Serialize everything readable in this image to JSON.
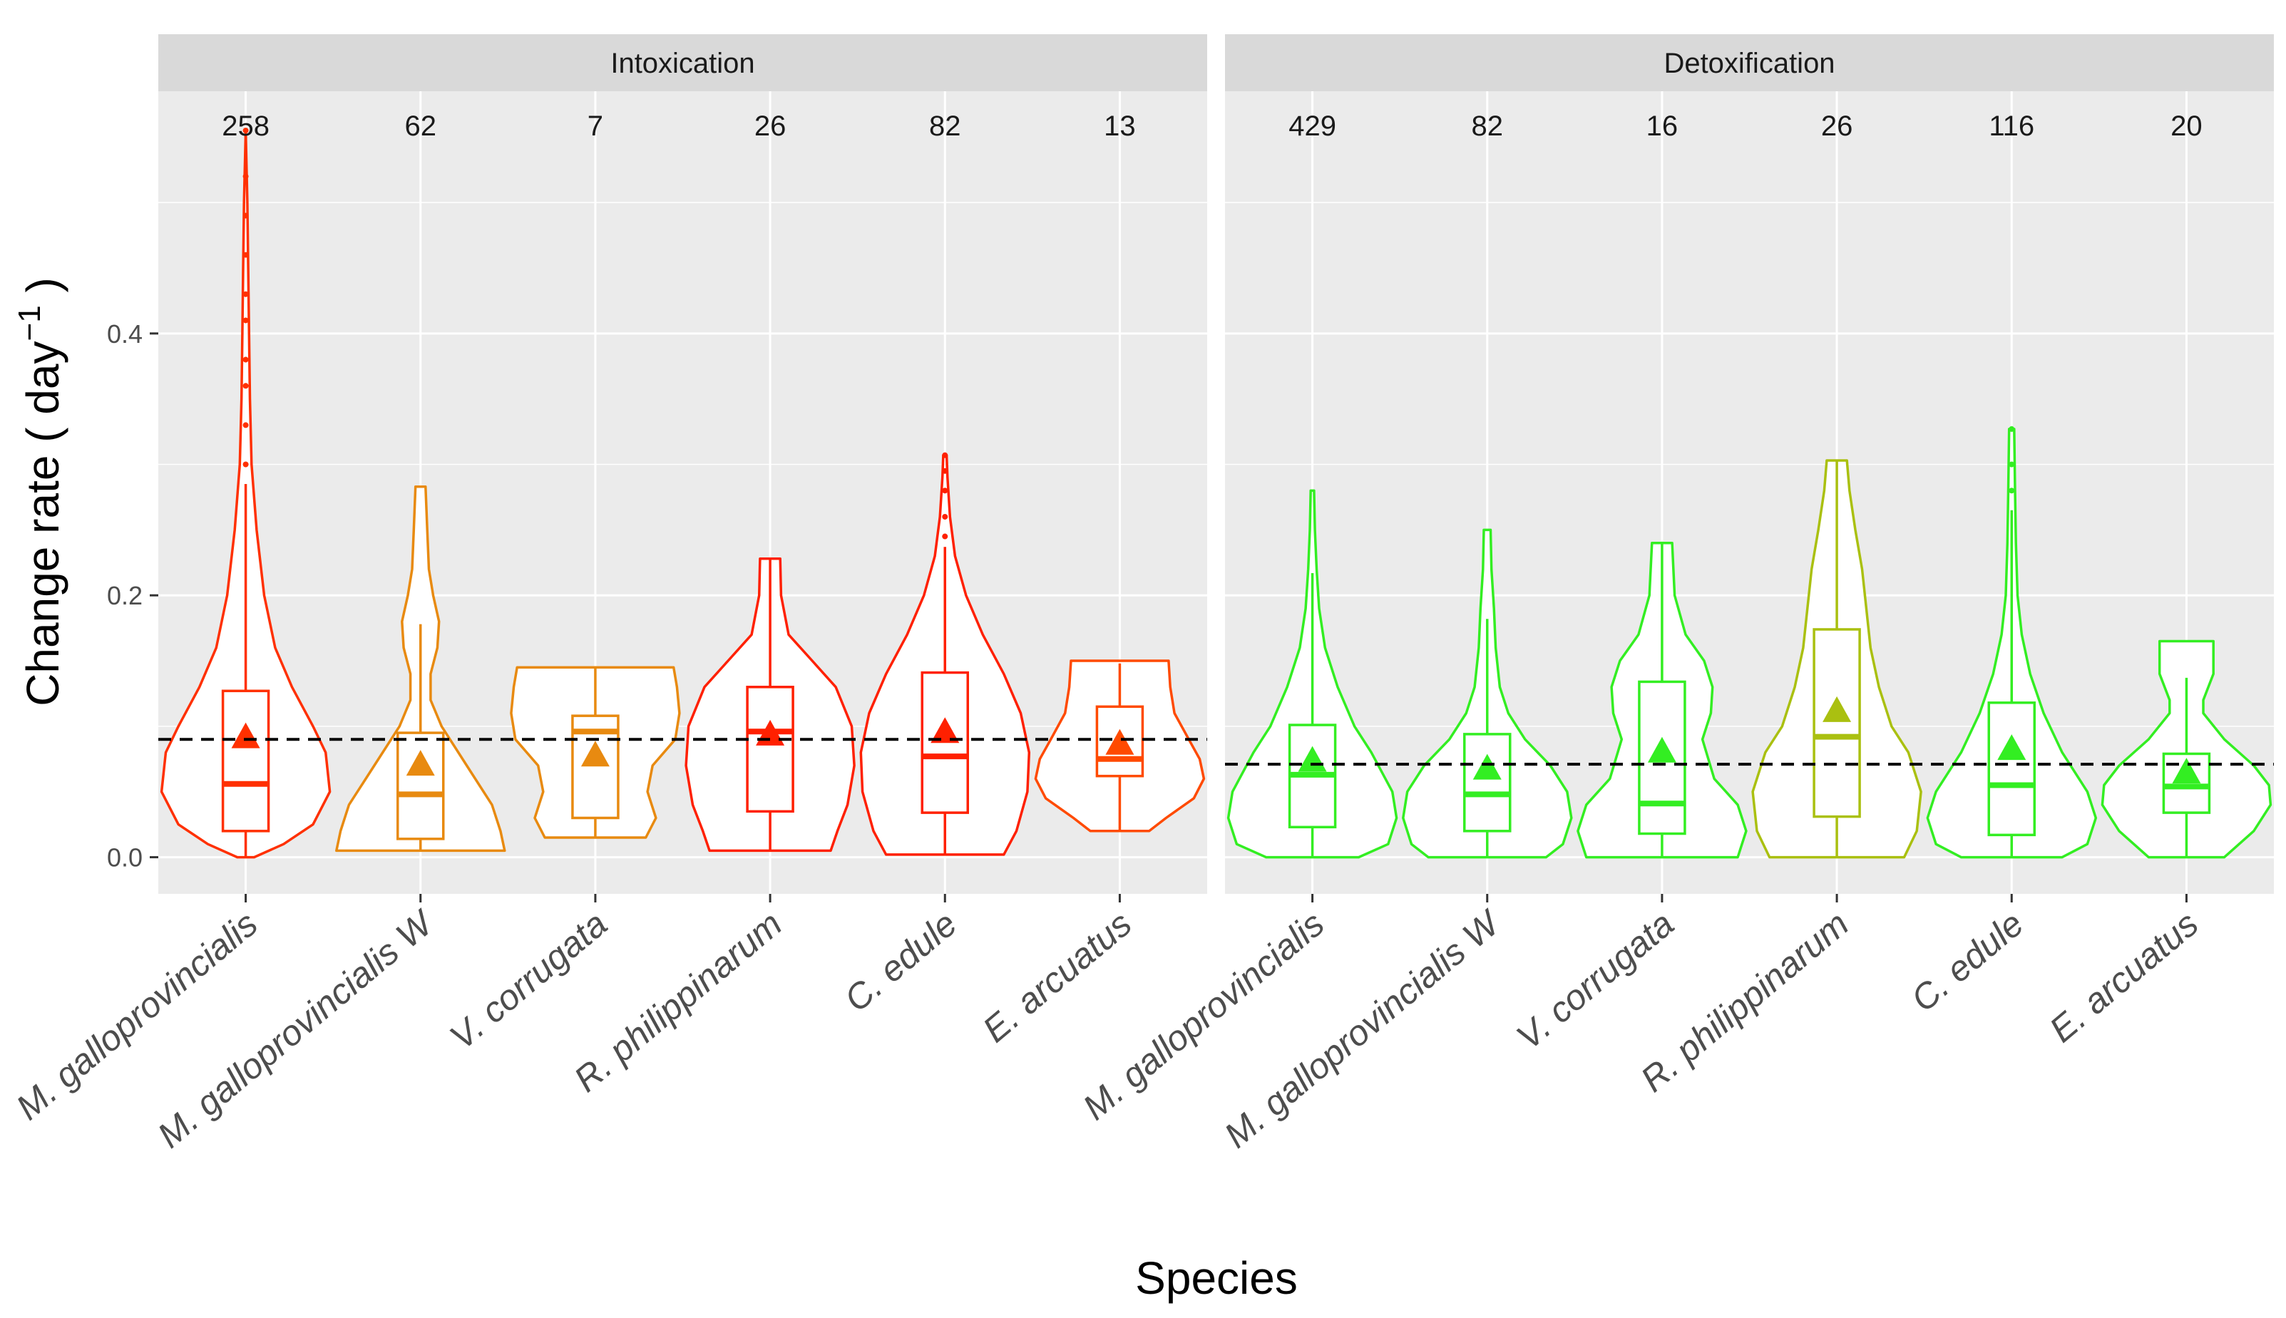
{
  "chart_data": {
    "type": "violin",
    "xlabel": "Species",
    "ylabel": "Change rate ( day",
    "ylabel_superscript": "−1",
    "ylabel_close": " )",
    "ylim": [
      -0.028,
      0.585
    ],
    "yticks": [
      0.0,
      0.2,
      0.4
    ],
    "ytick_labels": [
      "0.0",
      "0.2",
      "0.4"
    ],
    "categories": [
      "M. galloprovincialis",
      "M. galloprovincialis W",
      "V. corrugata",
      "R. philippinarum",
      "C. edule",
      "E. arcuatus"
    ],
    "panels": [
      {
        "name": "Intoxication",
        "reference_line": 0.09,
        "groups": [
          {
            "category": "M. galloprovincialis",
            "count": "258",
            "color": "#ff3000",
            "violin": {
              "y": [
                0.0,
                0.01,
                0.025,
                0.05,
                0.08,
                0.1,
                0.13,
                0.16,
                0.2,
                0.25,
                0.3,
                0.35,
                0.4,
                0.45,
                0.5,
                0.555
              ],
              "w": [
                0.1,
                0.45,
                0.8,
                1.0,
                0.95,
                0.8,
                0.55,
                0.35,
                0.22,
                0.13,
                0.07,
                0.05,
                0.04,
                0.03,
                0.02,
                0.0
              ]
            },
            "box": {
              "q1": 0.02,
              "median": 0.056,
              "q3": 0.127,
              "whisker_low": 0.0,
              "whisker_high": 0.285,
              "mean": 0.092,
              "outliers": [
                0.3,
                0.33,
                0.36,
                0.38,
                0.41,
                0.43,
                0.46,
                0.49,
                0.52,
                0.555
              ]
            }
          },
          {
            "category": "M. galloprovincialis W",
            "count": "62",
            "color": "#e88a10",
            "violin": {
              "y": [
                0.005,
                0.02,
                0.04,
                0.07,
                0.1,
                0.12,
                0.14,
                0.16,
                0.18,
                0.2,
                0.22,
                0.25,
                0.283
              ],
              "w": [
                1.0,
                0.95,
                0.85,
                0.55,
                0.25,
                0.12,
                0.12,
                0.2,
                0.22,
                0.15,
                0.1,
                0.08,
                0.06
              ]
            },
            "box": {
              "q1": 0.014,
              "median": 0.048,
              "q3": 0.095,
              "whisker_low": 0.005,
              "whisker_high": 0.178,
              "mean": 0.071,
              "outliers": []
            }
          },
          {
            "category": "V. corrugata",
            "count": "7",
            "color": "#e88a10",
            "violin": {
              "y": [
                0.015,
                0.03,
                0.05,
                0.07,
                0.09,
                0.11,
                0.13,
                0.145
              ],
              "w": [
                0.6,
                0.72,
                0.62,
                0.68,
                0.95,
                1.0,
                0.97,
                0.93
              ]
            },
            "box": {
              "q1": 0.03,
              "median": 0.096,
              "q3": 0.108,
              "whisker_low": 0.015,
              "whisker_high": 0.145,
              "mean": 0.078,
              "outliers": []
            }
          },
          {
            "category": "R. philippinarum",
            "count": "26",
            "color": "#ff2000",
            "violin": {
              "y": [
                0.005,
                0.02,
                0.04,
                0.07,
                0.1,
                0.13,
                0.15,
                0.17,
                0.2,
                0.228
              ],
              "w": [
                0.72,
                0.8,
                0.92,
                1.0,
                0.97,
                0.78,
                0.5,
                0.22,
                0.13,
                0.12
              ]
            },
            "box": {
              "q1": 0.035,
              "median": 0.096,
              "q3": 0.13,
              "whisker_low": 0.005,
              "whisker_high": 0.228,
              "mean": 0.094,
              "outliers": []
            }
          },
          {
            "category": "C. edule",
            "count": "82",
            "color": "#ff2000",
            "violin": {
              "y": [
                0.002,
                0.02,
                0.05,
                0.08,
                0.11,
                0.14,
                0.17,
                0.2,
                0.23,
                0.26,
                0.29,
                0.307
              ],
              "w": [
                0.7,
                0.85,
                0.98,
                1.0,
                0.9,
                0.7,
                0.45,
                0.25,
                0.12,
                0.06,
                0.03,
                0.02
              ]
            },
            "box": {
              "q1": 0.034,
              "median": 0.077,
              "q3": 0.141,
              "whisker_low": 0.002,
              "whisker_high": 0.237,
              "mean": 0.096,
              "outliers": [
                0.245,
                0.26,
                0.28,
                0.295,
                0.307
              ]
            }
          },
          {
            "category": "E. arcuatus",
            "count": "13",
            "color": "#ff4a00",
            "violin": {
              "y": [
                0.02,
                0.03,
                0.045,
                0.06,
                0.075,
                0.09,
                0.11,
                0.13,
                0.15
              ],
              "w": [
                0.35,
                0.55,
                0.88,
                1.0,
                0.95,
                0.82,
                0.65,
                0.6,
                0.58
              ]
            },
            "box": {
              "q1": 0.062,
              "median": 0.075,
              "q3": 0.115,
              "whisker_low": 0.02,
              "whisker_high": 0.148,
              "mean": 0.087,
              "outliers": []
            }
          }
        ]
      },
      {
        "name": "Detoxification",
        "reference_line": 0.071,
        "groups": [
          {
            "category": "M. galloprovincialis",
            "count": "429",
            "color": "#33ee22",
            "violin": {
              "y": [
                0.0,
                0.01,
                0.03,
                0.05,
                0.08,
                0.1,
                0.13,
                0.16,
                0.19,
                0.22,
                0.25,
                0.28
              ],
              "w": [
                0.55,
                0.9,
                1.0,
                0.95,
                0.7,
                0.5,
                0.3,
                0.15,
                0.08,
                0.05,
                0.03,
                0.02
              ]
            },
            "box": {
              "q1": 0.023,
              "median": 0.063,
              "q3": 0.101,
              "whisker_low": 0.0,
              "whisker_high": 0.217,
              "mean": 0.074,
              "outliers": []
            }
          },
          {
            "category": "M. galloprovincialis W",
            "count": "82",
            "color": "#33ee22",
            "violin": {
              "y": [
                0.0,
                0.01,
                0.03,
                0.05,
                0.07,
                0.09,
                0.11,
                0.13,
                0.16,
                0.19,
                0.22,
                0.25
              ],
              "w": [
                0.7,
                0.9,
                1.0,
                0.95,
                0.75,
                0.45,
                0.25,
                0.15,
                0.1,
                0.08,
                0.05,
                0.04
              ]
            },
            "box": {
              "q1": 0.02,
              "median": 0.048,
              "q3": 0.094,
              "whisker_low": 0.0,
              "whisker_high": 0.182,
              "mean": 0.068,
              "outliers": []
            }
          },
          {
            "category": "V. corrugata",
            "count": "16",
            "color": "#33ee22",
            "violin": {
              "y": [
                0.0,
                0.02,
                0.04,
                0.06,
                0.09,
                0.11,
                0.13,
                0.15,
                0.17,
                0.2,
                0.24
              ],
              "w": [
                0.9,
                1.0,
                0.9,
                0.62,
                0.48,
                0.58,
                0.6,
                0.5,
                0.28,
                0.15,
                0.12
              ]
            },
            "box": {
              "q1": 0.018,
              "median": 0.041,
              "q3": 0.134,
              "whisker_low": 0.0,
              "whisker_high": 0.241,
              "mean": 0.081,
              "outliers": []
            }
          },
          {
            "category": "R. philippinarum",
            "count": "26",
            "color": "#aac010",
            "violin": {
              "y": [
                0.0,
                0.02,
                0.05,
                0.08,
                0.1,
                0.13,
                0.16,
                0.19,
                0.22,
                0.25,
                0.28,
                0.303
              ],
              "w": [
                0.8,
                0.95,
                1.0,
                0.85,
                0.65,
                0.5,
                0.4,
                0.35,
                0.3,
                0.22,
                0.15,
                0.12
              ]
            },
            "box": {
              "q1": 0.031,
              "median": 0.092,
              "q3": 0.174,
              "whisker_low": 0.0,
              "whisker_high": 0.303,
              "mean": 0.112,
              "outliers": []
            }
          },
          {
            "category": "C. edule",
            "count": "116",
            "color": "#33ee22",
            "violin": {
              "y": [
                0.0,
                0.01,
                0.03,
                0.05,
                0.08,
                0.11,
                0.14,
                0.17,
                0.2,
                0.24,
                0.28,
                0.327
              ],
              "w": [
                0.6,
                0.9,
                1.0,
                0.9,
                0.6,
                0.38,
                0.22,
                0.12,
                0.07,
                0.05,
                0.04,
                0.03
              ]
            },
            "box": {
              "q1": 0.017,
              "median": 0.055,
              "q3": 0.118,
              "whisker_low": 0.0,
              "whisker_high": 0.265,
              "mean": 0.083,
              "outliers": [
                0.28,
                0.3,
                0.327
              ]
            }
          },
          {
            "category": "E. arcuatus",
            "count": "20",
            "color": "#33ee22",
            "violin": {
              "y": [
                0.0,
                0.02,
                0.04,
                0.055,
                0.07,
                0.09,
                0.11,
                0.12,
                0.14,
                0.165
              ],
              "w": [
                0.45,
                0.8,
                1.0,
                0.98,
                0.8,
                0.45,
                0.2,
                0.2,
                0.32,
                0.32
              ]
            },
            "box": {
              "q1": 0.034,
              "median": 0.054,
              "q3": 0.079,
              "whisker_low": 0.0,
              "whisker_high": 0.137,
              "mean": 0.065,
              "outliers": []
            }
          }
        ]
      }
    ]
  }
}
